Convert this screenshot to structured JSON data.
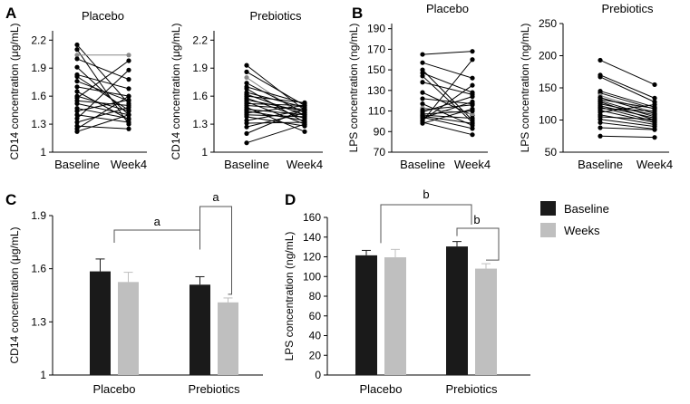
{
  "colors": {
    "baseline": "#1a1a1a",
    "week": "#bfbfbf",
    "line": "#000000",
    "highlight": "#888888"
  },
  "panel_labels": {
    "A": "A",
    "B": "B",
    "C": "C",
    "D": "D"
  },
  "chart_data": [
    {
      "id": "A1",
      "type": "line",
      "title": "Placebo",
      "ylabel": "CD14 concentration (μg/mL)",
      "categories": [
        "Baseline",
        "Week4"
      ],
      "ylim": [
        1,
        2.3
      ],
      "yticks": [
        "1",
        "1.3",
        "1.6",
        "1.9",
        "2.2"
      ],
      "pairs": [
        [
          2.15,
          1.52
        ],
        [
          2.1,
          1.3
        ],
        [
          2.04,
          2.04
        ],
        [
          2.0,
          1.78
        ],
        [
          1.91,
          1.4
        ],
        [
          1.83,
          1.68
        ],
        [
          1.81,
          1.45
        ],
        [
          1.76,
          1.55
        ],
        [
          1.7,
          1.6
        ],
        [
          1.65,
          1.35
        ],
        [
          1.6,
          1.44
        ],
        [
          1.58,
          1.98
        ],
        [
          1.55,
          1.5
        ],
        [
          1.52,
          1.4
        ],
        [
          1.47,
          1.36
        ],
        [
          1.44,
          1.56
        ],
        [
          1.4,
          1.32
        ],
        [
          1.36,
          1.88
        ],
        [
          1.32,
          1.48
        ],
        [
          1.28,
          1.25
        ],
        [
          1.25,
          1.6
        ],
        [
          1.22,
          1.4
        ]
      ],
      "highlight_index": 2
    },
    {
      "id": "A2",
      "type": "line",
      "title": "Prebiotics",
      "ylabel": "CD14 concentration (μg/mL)",
      "categories": [
        "Baseline",
        "Week4"
      ],
      "ylim": [
        1,
        2.3
      ],
      "yticks": [
        "1",
        "1.3",
        "1.6",
        "1.9",
        "2.2"
      ],
      "pairs": [
        [
          1.93,
          1.45
        ],
        [
          1.86,
          1.5
        ],
        [
          1.8,
          1.38
        ],
        [
          1.74,
          1.42
        ],
        [
          1.7,
          1.52
        ],
        [
          1.68,
          1.32
        ],
        [
          1.64,
          1.48
        ],
        [
          1.62,
          1.4
        ],
        [
          1.6,
          1.53
        ],
        [
          1.58,
          1.36
        ],
        [
          1.56,
          1.44
        ],
        [
          1.54,
          1.3
        ],
        [
          1.52,
          1.5
        ],
        [
          1.5,
          1.46
        ],
        [
          1.48,
          1.22
        ],
        [
          1.46,
          1.4
        ],
        [
          1.44,
          1.34
        ],
        [
          1.42,
          1.5
        ],
        [
          1.4,
          1.38
        ],
        [
          1.38,
          1.28
        ],
        [
          1.34,
          1.45
        ],
        [
          1.31,
          1.32
        ],
        [
          1.27,
          1.42
        ],
        [
          1.2,
          1.46
        ],
        [
          1.1,
          1.3
        ]
      ],
      "highlight_index": 2
    },
    {
      "id": "B1",
      "type": "line",
      "title": "Placebo",
      "ylabel": "LPS concentration (ng/mL)",
      "categories": [
        "Baseline",
        "Week4"
      ],
      "ylim": [
        70,
        195
      ],
      "yticks": [
        "70",
        "90",
        "110",
        "130",
        "150",
        "170",
        "190"
      ],
      "pairs": [
        [
          165,
          168
        ],
        [
          157,
          142
        ],
        [
          150,
          101
        ],
        [
          147,
          128
        ],
        [
          144,
          99
        ],
        [
          138,
          126
        ],
        [
          128,
          106
        ],
        [
          122,
          117
        ],
        [
          117,
          96
        ],
        [
          113,
          107
        ],
        [
          111,
          116
        ],
        [
          109,
          124
        ],
        [
          107,
          110
        ],
        [
          106,
          103
        ],
        [
          105,
          98
        ],
        [
          104,
          93
        ],
        [
          103,
          119
        ],
        [
          101,
          135
        ],
        [
          100,
          160
        ],
        [
          99,
          87
        ],
        [
          98,
          112
        ]
      ],
      "highlight_index": 9
    },
    {
      "id": "B2",
      "type": "line",
      "title": "Prebiotics",
      "ylabel": "LPS concentration (ng/mL)",
      "categories": [
        "Baseline",
        "Week4"
      ],
      "ylim": [
        50,
        250
      ],
      "yticks": [
        "50",
        "100",
        "150",
        "200",
        "250"
      ],
      "pairs": [
        [
          193,
          155
        ],
        [
          170,
          134
        ],
        [
          167,
          128
        ],
        [
          145,
          120
        ],
        [
          142,
          117
        ],
        [
          138,
          112
        ],
        [
          135,
          110
        ],
        [
          132,
          118
        ],
        [
          130,
          105
        ],
        [
          128,
          100
        ],
        [
          125,
          108
        ],
        [
          122,
          103
        ],
        [
          120,
          98
        ],
        [
          118,
          114
        ],
        [
          115,
          96
        ],
        [
          112,
          124
        ],
        [
          108,
          93
        ],
        [
          105,
          101
        ],
        [
          101,
          90
        ],
        [
          96,
          86
        ],
        [
          88,
          85
        ],
        [
          75,
          73
        ]
      ],
      "highlight_index": 5
    },
    {
      "id": "C",
      "type": "bar",
      "ylabel": "CD14 concentration (μg/mL)",
      "categories": [
        "Placebo",
        "Prebiotics"
      ],
      "ylim": [
        1,
        1.9
      ],
      "yticks": [
        "1",
        "1.3",
        "1.6",
        "1.9"
      ],
      "series": [
        {
          "name": "Baseline",
          "values": [
            1.585,
            1.51
          ],
          "errors": [
            0.07,
            0.045
          ]
        },
        {
          "name": "Weeks",
          "values": [
            1.525,
            1.41
          ],
          "errors": [
            0.055,
            0.025
          ]
        }
      ],
      "significance": [
        {
          "label": "a",
          "between": "Placebo vs Prebiotics"
        },
        {
          "label": "a",
          "between": "Prebiotics Baseline vs Weeks"
        }
      ]
    },
    {
      "id": "D",
      "type": "bar",
      "ylabel": "LPS concentration (ng/mL)",
      "categories": [
        "Placebo",
        "Prebiotics"
      ],
      "ylim": [
        0,
        160
      ],
      "yticks": [
        "0",
        "20",
        "40",
        "60",
        "80",
        "100",
        "120",
        "140",
        "160"
      ],
      "series": [
        {
          "name": "Baseline",
          "values": [
            121.5,
            130.5
          ],
          "errors": [
            5,
            5
          ]
        },
        {
          "name": "Weeks",
          "values": [
            119.5,
            108
          ],
          "errors": [
            8,
            5
          ]
        }
      ],
      "significance": [
        {
          "label": "b",
          "between": "Placebo vs Prebiotics"
        },
        {
          "label": "b",
          "between": "Prebiotics Baseline vs Weeks"
        }
      ]
    }
  ],
  "legend": [
    {
      "label": "Baseline",
      "color": "#1a1a1a"
    },
    {
      "label": "Weeks",
      "color": "#bfbfbf"
    }
  ]
}
